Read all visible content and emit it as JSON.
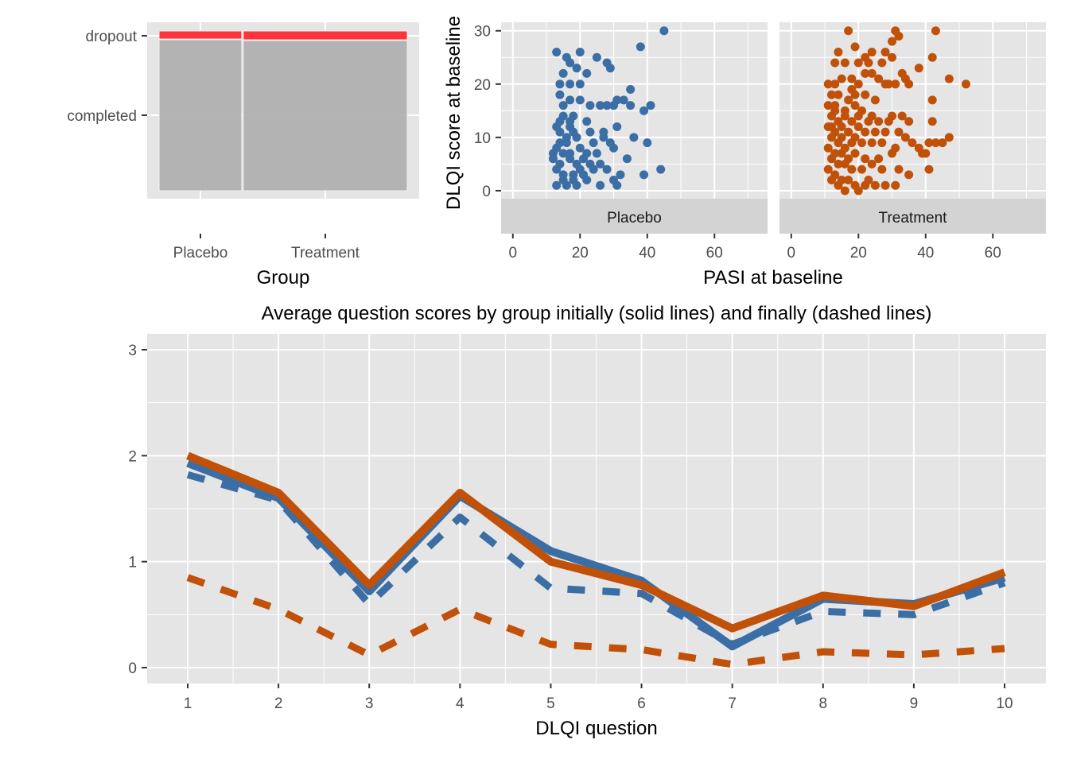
{
  "colors": {
    "placebo": "#3a6ea5",
    "treatment": "#c15108",
    "dropout": "#ff333a",
    "completed": "#b0b0b0",
    "panel": "#e5e5e5",
    "strip": "#d3d3d3"
  },
  "chart_data": [
    {
      "type": "mosaic",
      "xlabel": "Group",
      "ylabel": "",
      "categories": [
        "Placebo",
        "Treatment"
      ],
      "group_share": [
        0.335,
        0.665
      ],
      "y_categories": [
        "dropout",
        "completed"
      ],
      "dropout_share": [
        0.05,
        0.055
      ],
      "grid": true
    },
    {
      "type": "scatter",
      "xlabel": "PASI at baseline",
      "ylabel": "DLQI score at baseline",
      "xlim": [
        -3.5,
        75.8
      ],
      "ylim": [
        -1.5,
        31.6
      ],
      "xticks": [
        0,
        20,
        40,
        60
      ],
      "yticks": [
        0,
        10,
        20,
        30
      ],
      "facets": [
        "Placebo",
        "Treatment"
      ],
      "series": [
        {
          "facet": "Placebo",
          "points": [
            [
              45,
              30
            ],
            [
              38,
              27
            ],
            [
              13,
              26
            ],
            [
              20,
              26
            ],
            [
              25,
              25
            ],
            [
              16,
              25
            ],
            [
              28,
              24
            ],
            [
              29,
              23
            ],
            [
              17,
              24
            ],
            [
              15,
              22
            ],
            [
              19,
              23
            ],
            [
              22,
              22
            ],
            [
              14,
              20
            ],
            [
              17,
              20
            ],
            [
              20,
              20
            ],
            [
              35,
              19
            ],
            [
              14,
              18
            ],
            [
              17,
              17
            ],
            [
              15,
              16
            ],
            [
              20,
              17
            ],
            [
              23,
              16
            ],
            [
              26,
              16
            ],
            [
              28,
              16
            ],
            [
              31,
              17
            ],
            [
              33,
              17
            ],
            [
              30,
              16
            ],
            [
              35,
              16
            ],
            [
              39,
              15
            ],
            [
              41,
              16
            ],
            [
              15,
              14
            ],
            [
              18,
              14
            ],
            [
              22,
              13
            ],
            [
              13,
              12
            ],
            [
              17,
              12
            ],
            [
              14,
              11
            ],
            [
              18,
              11
            ],
            [
              23,
              11
            ],
            [
              27,
              11
            ],
            [
              31,
              12
            ],
            [
              14,
              9
            ],
            [
              16,
              9
            ],
            [
              19,
              10
            ],
            [
              24,
              9
            ],
            [
              29,
              9
            ],
            [
              27,
              10
            ],
            [
              36,
              10
            ],
            [
              40,
              9
            ],
            [
              13,
              8
            ],
            [
              15,
              7
            ],
            [
              17,
              7
            ],
            [
              20,
              8
            ],
            [
              22,
              7
            ],
            [
              25,
              7
            ],
            [
              30,
              8
            ],
            [
              12,
              6
            ],
            [
              14,
              5
            ],
            [
              17,
              6
            ],
            [
              19,
              5
            ],
            [
              21,
              6
            ],
            [
              23,
              5
            ],
            [
              26,
              5
            ],
            [
              34,
              6
            ],
            [
              13,
              4
            ],
            [
              15,
              3
            ],
            [
              18,
              3
            ],
            [
              21,
              3
            ],
            [
              24,
              4
            ],
            [
              28,
              4
            ],
            [
              32,
              3
            ],
            [
              39,
              3
            ],
            [
              44,
              4
            ],
            [
              13,
              1
            ],
            [
              16,
              1
            ],
            [
              19,
              1
            ],
            [
              26,
              1
            ],
            [
              30,
              2
            ],
            [
              31,
              1
            ],
            [
              18,
              2
            ],
            [
              22,
              2
            ],
            [
              15,
              2
            ],
            [
              14,
              13
            ],
            [
              16,
              10
            ],
            [
              12,
              7
            ],
            [
              20,
              4
            ],
            [
              17,
              13
            ]
          ]
        },
        {
          "facet": "Treatment",
          "points": [
            [
              17,
              30
            ],
            [
              31,
              30
            ],
            [
              32,
              29
            ],
            [
              43,
              30
            ],
            [
              30,
              28
            ],
            [
              19,
              27
            ],
            [
              24,
              26
            ],
            [
              14,
              26
            ],
            [
              28,
              26
            ],
            [
              22,
              25
            ],
            [
              30,
              25
            ],
            [
              42,
              25
            ],
            [
              13,
              24
            ],
            [
              16,
              24
            ],
            [
              20,
              24
            ],
            [
              23,
              24
            ],
            [
              27,
              24
            ],
            [
              38,
              23
            ],
            [
              33,
              22
            ],
            [
              34,
              21
            ],
            [
              47,
              21
            ],
            [
              52,
              20
            ],
            [
              11,
              20
            ],
            [
              13,
              20
            ],
            [
              15,
              21
            ],
            [
              18,
              21
            ],
            [
              20,
              20
            ],
            [
              22,
              22
            ],
            [
              24,
              22
            ],
            [
              26,
              21
            ],
            [
              28,
              20
            ],
            [
              29,
              20
            ],
            [
              31,
              20
            ],
            [
              35,
              20
            ],
            [
              12,
              18
            ],
            [
              14,
              18
            ],
            [
              17,
              17
            ],
            [
              19,
              18
            ],
            [
              22,
              18
            ],
            [
              25,
              17
            ],
            [
              42,
              17
            ],
            [
              11,
              16
            ],
            [
              13,
              15
            ],
            [
              16,
              15
            ],
            [
              19,
              16
            ],
            [
              21,
              15
            ],
            [
              24,
              14
            ],
            [
              12,
              14
            ],
            [
              14,
              13
            ],
            [
              18,
              13
            ],
            [
              20,
              12
            ],
            [
              23,
              13
            ],
            [
              26,
              13
            ],
            [
              29,
              13
            ],
            [
              30,
              14
            ],
            [
              33,
              14
            ],
            [
              35,
              13
            ],
            [
              42,
              13
            ],
            [
              11,
              12
            ],
            [
              13,
              11
            ],
            [
              15,
              12
            ],
            [
              17,
              11
            ],
            [
              19,
              10
            ],
            [
              22,
              11
            ],
            [
              25,
              11
            ],
            [
              28,
              11
            ],
            [
              32,
              11
            ],
            [
              34,
              10
            ],
            [
              47,
              10
            ],
            [
              12,
              10
            ],
            [
              14,
              9
            ],
            [
              16,
              8
            ],
            [
              18,
              9
            ],
            [
              21,
              9
            ],
            [
              24,
              9
            ],
            [
              27,
              9
            ],
            [
              31,
              8
            ],
            [
              36,
              9
            ],
            [
              38,
              8
            ],
            [
              41,
              9
            ],
            [
              43,
              9
            ],
            [
              45,
              9
            ],
            [
              11,
              8
            ],
            [
              13,
              7
            ],
            [
              15,
              7
            ],
            [
              17,
              6
            ],
            [
              19,
              7
            ],
            [
              22,
              6
            ],
            [
              26,
              6
            ],
            [
              30,
              7
            ],
            [
              39,
              7
            ],
            [
              40,
              7
            ],
            [
              12,
              6
            ],
            [
              14,
              5
            ],
            [
              16,
              5
            ],
            [
              18,
              4
            ],
            [
              21,
              4
            ],
            [
              24,
              5
            ],
            [
              27,
              4
            ],
            [
              32,
              4
            ],
            [
              35,
              3
            ],
            [
              41,
              4
            ],
            [
              11,
              4
            ],
            [
              13,
              3
            ],
            [
              15,
              2
            ],
            [
              17,
              2
            ],
            [
              19,
              1
            ],
            [
              22,
              1
            ],
            [
              25,
              1
            ],
            [
              28,
              1
            ],
            [
              31,
              1
            ],
            [
              12,
              2
            ],
            [
              14,
              1
            ],
            [
              16,
              0
            ],
            [
              20,
              0
            ],
            [
              23,
              2
            ],
            [
              15,
              10
            ],
            [
              13,
              16
            ],
            [
              18,
              19
            ],
            [
              16,
              14
            ],
            [
              12,
              12
            ],
            [
              20,
              14
            ]
          ]
        }
      ]
    },
    {
      "type": "line",
      "title": "Average question scores by group initially (solid lines) and finally (dashed lines)",
      "xlabel": "DLQI question",
      "ylabel": "",
      "x": [
        1,
        2,
        3,
        4,
        5,
        6,
        7,
        8,
        9,
        10
      ],
      "ylim": [
        -0.15,
        3.15
      ],
      "yticks": [
        0,
        1,
        2,
        3
      ],
      "series": [
        {
          "group": "Placebo",
          "time": "initial",
          "style": "solid",
          "values": [
            1.93,
            1.6,
            0.72,
            1.62,
            1.1,
            0.82,
            0.2,
            0.65,
            0.6,
            0.85
          ]
        },
        {
          "group": "Placebo",
          "time": "final",
          "style": "dashed",
          "values": [
            1.82,
            1.58,
            0.6,
            1.42,
            0.75,
            0.7,
            0.22,
            0.53,
            0.5,
            0.8
          ]
        },
        {
          "group": "Treatment",
          "time": "initial",
          "style": "solid",
          "values": [
            2.0,
            1.65,
            0.78,
            1.65,
            1.0,
            0.78,
            0.37,
            0.68,
            0.58,
            0.9
          ]
        },
        {
          "group": "Treatment",
          "time": "final",
          "style": "dashed",
          "values": [
            0.85,
            0.55,
            0.12,
            0.55,
            0.22,
            0.17,
            0.03,
            0.15,
            0.12,
            0.18
          ]
        }
      ]
    }
  ]
}
